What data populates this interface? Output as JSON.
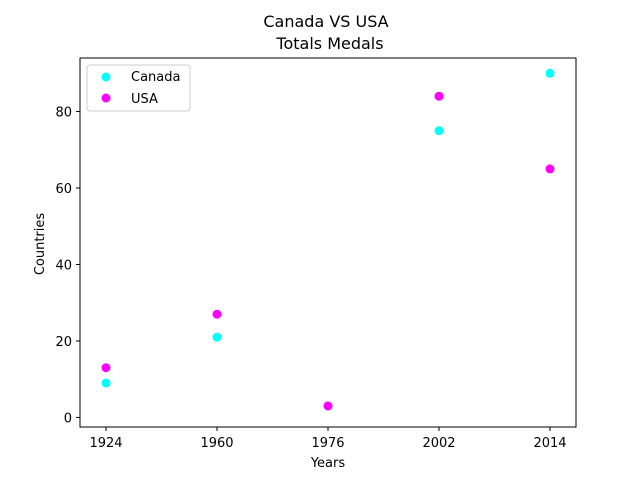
{
  "chart_data": {
    "type": "scatter",
    "title_line1": "Canada VS USA",
    "title_line2": "Totals Medals",
    "xlabel": "Years",
    "ylabel": "Countries",
    "categories": [
      "1924",
      "1960",
      "1976",
      "2002",
      "2014"
    ],
    "ylim": [
      -2.5,
      94
    ],
    "yticks": [
      0,
      20,
      40,
      60,
      80
    ],
    "grid": false,
    "legend_position": "top-left",
    "series": [
      {
        "name": "Canada",
        "color": "#00ffff",
        "values": [
          9,
          21,
          3,
          75,
          90
        ]
      },
      {
        "name": "USA",
        "color": "#ff00ff",
        "values": [
          13,
          27,
          3,
          84,
          65
        ]
      }
    ]
  }
}
